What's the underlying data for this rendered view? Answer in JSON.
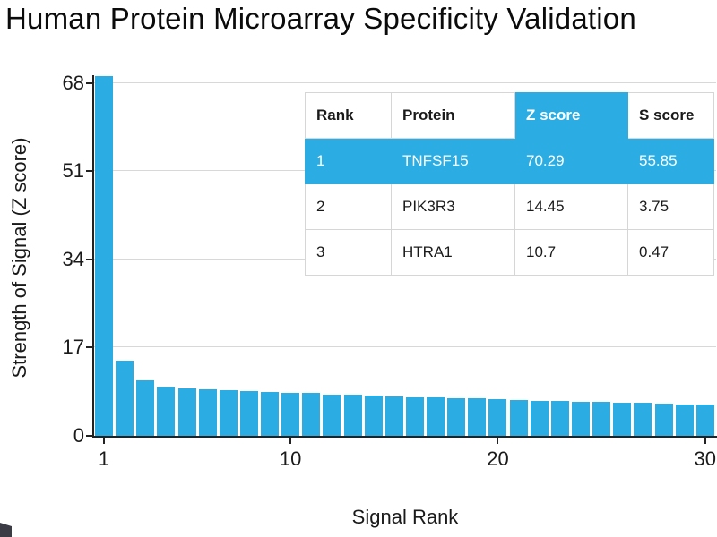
{
  "title": "Human Protein Microarray Specificity Validation",
  "chart_data": {
    "type": "bar",
    "title": "Human Protein Microarray Specificity Validation",
    "xlabel": "Signal Rank",
    "ylabel": "Strength of Signal (Z score)",
    "x_ticks": [
      1,
      10,
      20,
      30
    ],
    "y_ticks": [
      0,
      17,
      34,
      51,
      68
    ],
    "ylim": [
      0,
      69.3
    ],
    "grid": "horizontal",
    "legend": "none",
    "bar_color": "#2BACE2",
    "categories": [
      1,
      2,
      3,
      4,
      5,
      6,
      7,
      8,
      9,
      10,
      11,
      12,
      13,
      14,
      15,
      16,
      17,
      18,
      19,
      20,
      21,
      22,
      23,
      24,
      25,
      26,
      27,
      28,
      29,
      30
    ],
    "values": [
      70.29,
      14.45,
      10.7,
      9.5,
      9.2,
      9.0,
      8.8,
      8.6,
      8.5,
      8.3,
      8.2,
      8.0,
      7.9,
      7.8,
      7.6,
      7.5,
      7.4,
      7.3,
      7.2,
      7.0,
      6.9,
      6.8,
      6.7,
      6.6,
      6.5,
      6.4,
      6.3,
      6.2,
      6.1,
      6.0
    ]
  },
  "table": {
    "headers": [
      "Rank",
      "Protein",
      "Z score",
      "S score"
    ],
    "rows": [
      [
        "1",
        "TNFSF15",
        "70.29",
        "55.85"
      ],
      [
        "2",
        "PIK3R3",
        "14.45",
        "3.75"
      ],
      [
        "3",
        "HTRA1",
        "10.7",
        "0.47"
      ]
    ]
  }
}
